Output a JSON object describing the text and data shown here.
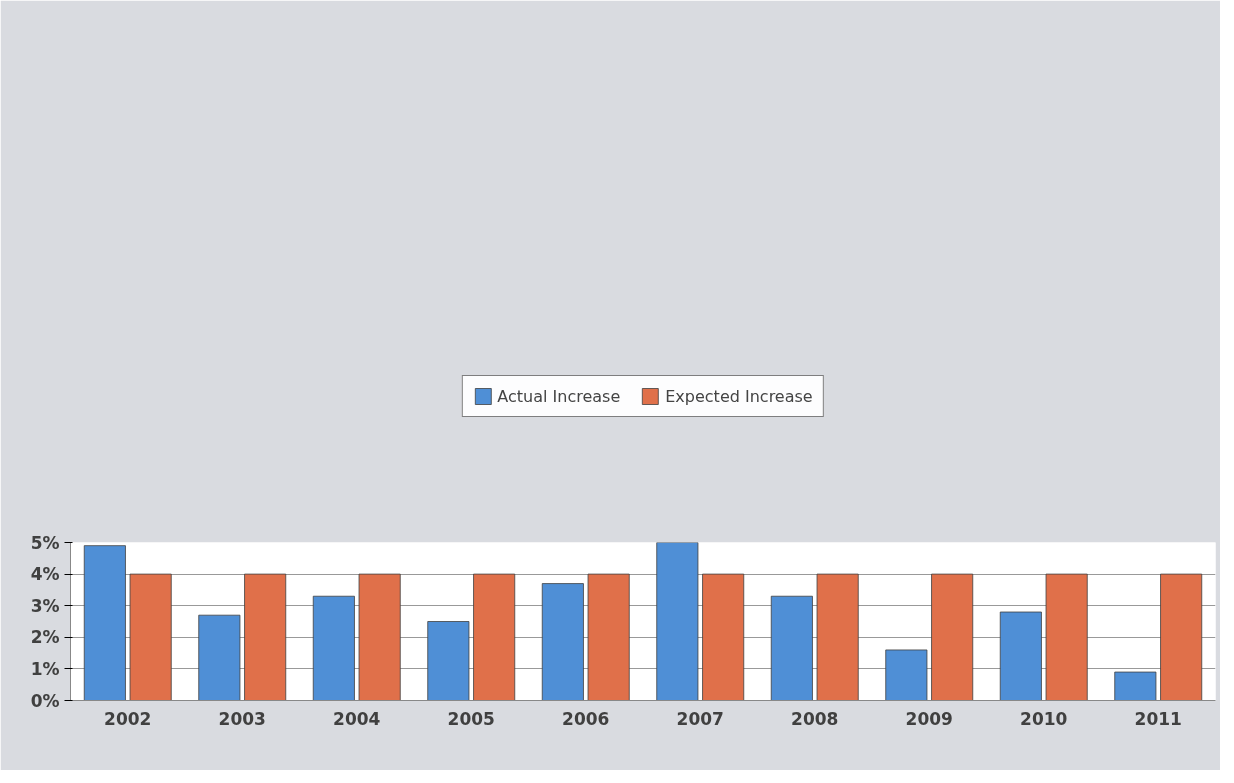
{
  "chart_data": {
    "type": "bar",
    "categories": [
      "2002",
      "2003",
      "2004",
      "2005",
      "2006",
      "2007",
      "2008",
      "2009",
      "2010",
      "2011"
    ],
    "series": [
      {
        "name": "Actual Increase",
        "color": "#4f8fd6",
        "values": [
          4.9,
          2.7,
          3.3,
          2.5,
          3.7,
          5.0,
          3.3,
          1.6,
          2.8,
          0.9
        ]
      },
      {
        "name": "Expected Increase",
        "color": "#e0704a",
        "values": [
          4,
          4,
          4,
          4,
          4,
          4,
          4,
          4,
          4,
          4
        ]
      }
    ],
    "ylim": [
      0,
      5
    ],
    "yticks": [
      {
        "value": 0,
        "label": "0%"
      },
      {
        "value": 1,
        "label": "1%"
      },
      {
        "value": 2,
        "label": "2%"
      },
      {
        "value": 3,
        "label": "3%"
      },
      {
        "value": 4,
        "label": "4%"
      },
      {
        "value": 5,
        "label": "5%"
      }
    ],
    "grid": "y",
    "legend": "top"
  }
}
